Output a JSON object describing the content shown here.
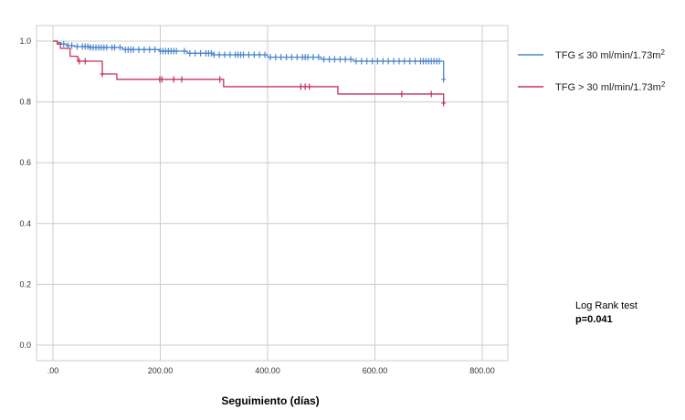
{
  "chart_data": {
    "type": "line",
    "subtype": "kaplan-meier",
    "xlabel": "Seguimiento (días)",
    "ylabel": "",
    "xlim": [
      -30,
      870
    ],
    "ylim": [
      -0.05,
      1.05
    ],
    "xticks": [
      0,
      200,
      400,
      600,
      800
    ],
    "xtick_labels": [
      ".00",
      "200.00",
      "400.00",
      "600.00",
      "800.00"
    ],
    "yticks": [
      0,
      0.2,
      0.4,
      0.6,
      0.8,
      1.0
    ],
    "ytick_labels": [
      "0.0",
      "0.2",
      "0.4",
      "0.6",
      "0.8",
      "1.0"
    ],
    "grid": true,
    "legend_position": "right",
    "series": [
      {
        "name": "TFG ≤ 30 ml/min/1.73m²",
        "legend_main": "TFG ≤ 30 ml/min/1.73m",
        "legend_sup": "2",
        "color": "#4a86d0",
        "steps": [
          [
            0,
            1.0
          ],
          [
            8,
            0.995
          ],
          [
            15,
            0.99
          ],
          [
            25,
            0.985
          ],
          [
            40,
            0.982
          ],
          [
            70,
            0.979
          ],
          [
            130,
            0.972
          ],
          [
            200,
            0.967
          ],
          [
            250,
            0.96
          ],
          [
            300,
            0.955
          ],
          [
            400,
            0.947
          ],
          [
            500,
            0.94
          ],
          [
            560,
            0.934
          ],
          [
            728,
            0.874
          ]
        ],
        "censored": [
          20,
          28,
          35,
          45,
          55,
          60,
          65,
          70,
          75,
          80,
          85,
          90,
          95,
          100,
          110,
          115,
          125,
          135,
          140,
          145,
          150,
          160,
          170,
          180,
          190,
          200,
          205,
          210,
          215,
          220,
          225,
          230,
          245,
          255,
          265,
          275,
          285,
          290,
          295,
          300,
          310,
          320,
          330,
          340,
          345,
          350,
          355,
          365,
          375,
          385,
          395,
          405,
          415,
          425,
          435,
          445,
          455,
          465,
          470,
          475,
          485,
          495,
          505,
          515,
          525,
          535,
          545,
          555,
          565,
          575,
          585,
          595,
          605,
          615,
          625,
          635,
          645,
          655,
          665,
          675,
          685,
          690,
          695,
          700,
          705,
          710,
          715,
          720,
          728
        ]
      },
      {
        "name": "TFG > 30 ml/min/1.73m²",
        "legend_main": "TFG > 30 ml/min/1.73m",
        "legend_sup": "2",
        "color": "#c8325a",
        "steps": [
          [
            0,
            1.0
          ],
          [
            8,
            0.99
          ],
          [
            14,
            0.976
          ],
          [
            32,
            0.95
          ],
          [
            46,
            0.934
          ],
          [
            92,
            0.892
          ],
          [
            119,
            0.874
          ],
          [
            318,
            0.85
          ],
          [
            531,
            0.826
          ],
          [
            728,
            0.796
          ]
        ],
        "censored": [
          49,
          60,
          92,
          199,
          203,
          225,
          240,
          311,
          462,
          470,
          478,
          650,
          705,
          728
        ]
      }
    ],
    "annotations": {
      "test": "Log Rank test",
      "p": "p=0.041"
    }
  }
}
